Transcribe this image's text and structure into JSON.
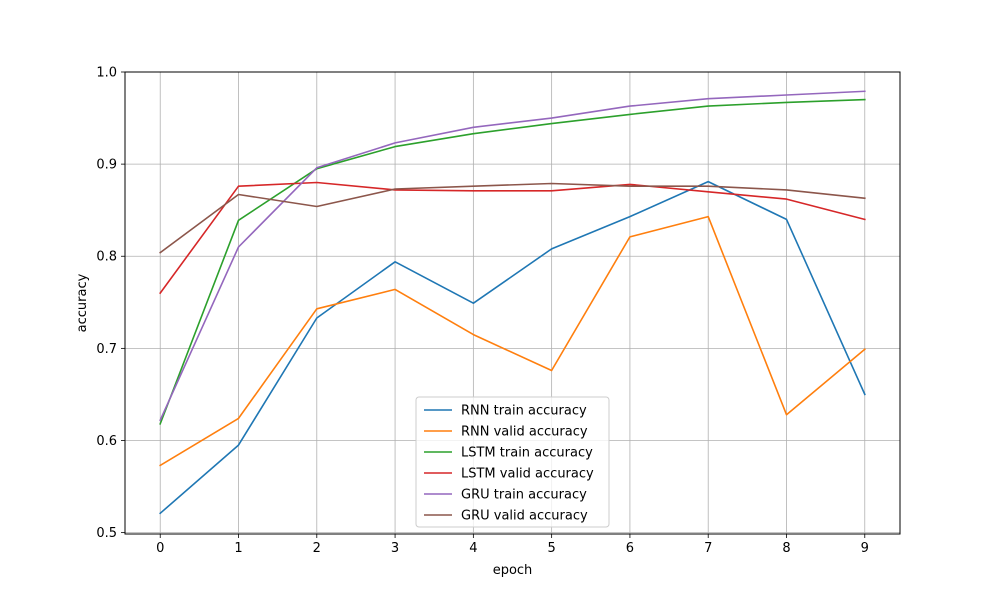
{
  "chart_data": {
    "type": "line",
    "xlabel": "epoch",
    "ylabel": "accuracy",
    "x": [
      0,
      1,
      2,
      3,
      4,
      5,
      6,
      7,
      8,
      9
    ],
    "xlim": [
      -0.45,
      9.45
    ],
    "ylim": [
      0.4985,
      1.0
    ],
    "xticks": [
      0,
      1,
      2,
      3,
      4,
      5,
      6,
      7,
      8,
      9
    ],
    "yticks": [
      0.5,
      0.6,
      0.7,
      0.8,
      0.9,
      1.0
    ],
    "ytick_labels": [
      "0.5",
      "0.6",
      "0.7",
      "0.8",
      "0.9",
      "1.0"
    ],
    "grid": true,
    "legend_position": "lower-center",
    "series": [
      {
        "name": "RNN train accuracy",
        "color": "#1f77b4",
        "values": [
          0.521,
          0.595,
          0.733,
          0.794,
          0.749,
          0.808,
          0.843,
          0.881,
          0.84,
          0.65
        ]
      },
      {
        "name": "RNN valid accuracy",
        "color": "#ff7f0e",
        "values": [
          0.573,
          0.624,
          0.743,
          0.764,
          0.715,
          0.676,
          0.821,
          0.843,
          0.628,
          0.699
        ]
      },
      {
        "name": "LSTM train accuracy",
        "color": "#2ca02c",
        "values": [
          0.618,
          0.839,
          0.895,
          0.919,
          0.933,
          0.944,
          0.954,
          0.963,
          0.967,
          0.97
        ]
      },
      {
        "name": "LSTM valid accuracy",
        "color": "#d62728",
        "values": [
          0.76,
          0.876,
          0.88,
          0.872,
          0.871,
          0.871,
          0.878,
          0.87,
          0.862,
          0.84
        ]
      },
      {
        "name": "GRU train accuracy",
        "color": "#9467bd",
        "values": [
          0.622,
          0.81,
          0.896,
          0.923,
          0.94,
          0.95,
          0.963,
          0.971,
          0.975,
          0.979
        ]
      },
      {
        "name": "GRU valid accuracy",
        "color": "#8c564b",
        "values": [
          0.804,
          0.867,
          0.854,
          0.873,
          0.876,
          0.879,
          0.876,
          0.876,
          0.872,
          0.863
        ]
      }
    ]
  }
}
